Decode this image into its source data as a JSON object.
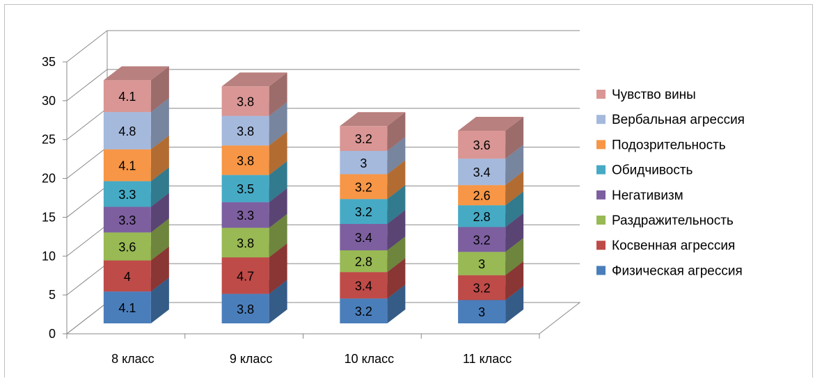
{
  "chart_data": {
    "type": "bar",
    "stacked": true,
    "three_d": true,
    "categories": [
      "8 класс",
      "9 класс",
      "10 класс",
      "11 класс"
    ],
    "series": [
      {
        "name": "Физическая агрессия",
        "color": "#4a7ebb",
        "values": [
          4.1,
          3.8,
          3.2,
          3
        ]
      },
      {
        "name": "Косвенная агрессия",
        "color": "#be4b48",
        "values": [
          4,
          4.7,
          3.4,
          3.2
        ]
      },
      {
        "name": "Раздражительность",
        "color": "#98b954",
        "values": [
          3.6,
          3.8,
          2.8,
          3
        ]
      },
      {
        "name": "Негативизм",
        "color": "#7d5fa0",
        "values": [
          3.3,
          3.3,
          3.4,
          3.2
        ]
      },
      {
        "name": "Обидчивость",
        "color": "#46aac5",
        "values": [
          3.3,
          3.5,
          3.2,
          2.8
        ]
      },
      {
        "name": "Подозрительность",
        "color": "#f79646",
        "values": [
          4.1,
          3.8,
          3.2,
          2.6
        ]
      },
      {
        "name": "Вербальная агрессия",
        "color": "#a5b9dd",
        "values": [
          4.8,
          3.8,
          3,
          3.4
        ]
      },
      {
        "name": "Чувство вины",
        "color": "#d99694",
        "values": [
          4.1,
          3.8,
          3.2,
          3.6
        ]
      }
    ],
    "ylim": [
      0,
      35
    ],
    "yticks": [
      "0",
      "5",
      "10",
      "15",
      "20",
      "25",
      "30",
      "35"
    ],
    "ytick_values": [
      0,
      5,
      10,
      15,
      20,
      25,
      30,
      35
    ],
    "grid": true,
    "legend": "right"
  }
}
